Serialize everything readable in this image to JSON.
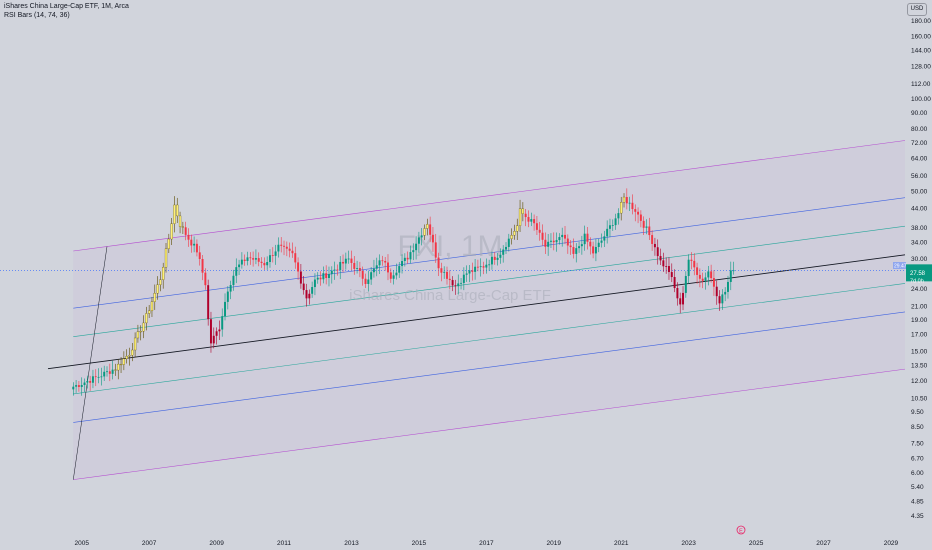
{
  "header": {
    "title": "iShares China Large-Cap ETF, 1M, Arca",
    "indicator": "RSI Bars (14, 74, 36)"
  },
  "currency_button": "USD",
  "watermark": {
    "ticker": "FXI, 1M",
    "name": "iShares China Large-Cap ETF"
  },
  "price_labels": {
    "current": "27.58",
    "countdown": "7d 0h",
    "ghost": "29.47"
  },
  "events_marker": "E",
  "colors": {
    "background": "#d1d4dc",
    "up": "#089981",
    "down": "#f23645",
    "overbought": "#fff176",
    "oversold": "#b0002b",
    "outer_channel": "#b44bd0",
    "quarter_line": "#3f63e0",
    "eighth_line": "#26a69a",
    "median_line": "#131722",
    "price_line": "#2962ff"
  },
  "chart_data": {
    "type": "candlestick",
    "title": "iShares China Large-Cap ETF, 1M, Arca",
    "interval": "1M",
    "y_scale": "log",
    "y_range": [
      4.0,
      200
    ],
    "y_ticks": [
      4.35,
      4.85,
      5.4,
      6.0,
      6.7,
      7.5,
      8.5,
      9.5,
      10.5,
      12.0,
      13.5,
      15.0,
      17.0,
      19.0,
      21.0,
      24.0,
      27.58,
      30.0,
      34.0,
      38.0,
      44.0,
      50.0,
      56.0,
      64.0,
      72.0,
      80.0,
      90.0,
      100.0,
      112.0,
      128.0,
      144.0,
      160.0,
      180.0
    ],
    "y_tick_labels": [
      "4.35",
      "4.85",
      "5.40",
      "6.00",
      "6.70",
      "7.50",
      "8.50",
      "9.50",
      "10.50",
      "12.00",
      "13.50",
      "15.00",
      "17.00",
      "19.00",
      "21.00",
      "24.00",
      "27.58",
      "30.00",
      "34.00",
      "38.00",
      "44.00",
      "50.00",
      "56.00",
      "64.00",
      "72.00",
      "80.00",
      "90.00",
      "100.00",
      "112.00",
      "128.00",
      "144.00",
      "160.00",
      "180.00"
    ],
    "x_range": [
      "2004-01",
      "2029-06"
    ],
    "x_ticks": [
      "2005",
      "2007",
      "2009",
      "2011",
      "2013",
      "2015",
      "2017",
      "2019",
      "2021",
      "2023",
      "2025",
      "2027",
      "2029"
    ],
    "last_close": 27.58,
    "close_anchors": [
      [
        "2004-10",
        11.5
      ],
      [
        "2005-06",
        12.3
      ],
      [
        "2006-01",
        13.2
      ],
      [
        "2006-06",
        14.8
      ],
      [
        "2006-12",
        19.5
      ],
      [
        "2007-05",
        26.0
      ],
      [
        "2007-08",
        35.0
      ],
      [
        "2007-10",
        45.0
      ],
      [
        "2007-12",
        39.0
      ],
      [
        "2008-03",
        35.0
      ],
      [
        "2008-06",
        32.0
      ],
      [
        "2008-09",
        25.0
      ],
      [
        "2008-10",
        19.0
      ],
      [
        "2008-11",
        16.0
      ],
      [
        "2009-02",
        18.0
      ],
      [
        "2009-05",
        24.0
      ],
      [
        "2009-08",
        28.0
      ],
      [
        "2009-12",
        30.5
      ],
      [
        "2010-06",
        29.0
      ],
      [
        "2010-11",
        33.0
      ],
      [
        "2011-04",
        31.0
      ],
      [
        "2011-09",
        22.5
      ],
      [
        "2011-12",
        25.5
      ],
      [
        "2012-05",
        27.0
      ],
      [
        "2012-12",
        30.0
      ],
      [
        "2013-06",
        25.5
      ],
      [
        "2013-12",
        30.0
      ],
      [
        "2014-03",
        26.5
      ],
      [
        "2014-09",
        30.5
      ],
      [
        "2015-04",
        39.5
      ],
      [
        "2015-08",
        28.5
      ],
      [
        "2016-02",
        24.5
      ],
      [
        "2016-06",
        27.0
      ],
      [
        "2016-12",
        28.5
      ],
      [
        "2017-06",
        31.5
      ],
      [
        "2017-12",
        38.5
      ],
      [
        "2018-01",
        43.0
      ],
      [
        "2018-06",
        39.0
      ],
      [
        "2018-10",
        33.0
      ],
      [
        "2019-04",
        35.5
      ],
      [
        "2019-08",
        31.0
      ],
      [
        "2019-12",
        35.5
      ],
      [
        "2020-03",
        31.5
      ],
      [
        "2020-06",
        34.5
      ],
      [
        "2020-12",
        42.5
      ],
      [
        "2021-02",
        47.5
      ],
      [
        "2021-06",
        43.5
      ],
      [
        "2021-10",
        37.5
      ],
      [
        "2022-01",
        33.0
      ],
      [
        "2022-03",
        29.5
      ],
      [
        "2022-06",
        27.5
      ],
      [
        "2022-10",
        21.0
      ],
      [
        "2023-01",
        30.0
      ],
      [
        "2023-06",
        25.5
      ],
      [
        "2023-08",
        27.5
      ],
      [
        "2023-12",
        22.0
      ],
      [
        "2024-02",
        23.5
      ],
      [
        "2024-05",
        29.0
      ]
    ],
    "rsi_bars": {
      "length": 14,
      "overbought": 74,
      "oversold": 36
    },
    "channel": {
      "type": "fibonacci-channel (sloped, log)",
      "anchor_start": [
        "2004-10",
        13.5
      ],
      "anchor_end": [
        "2029-06",
        31.0
      ],
      "levels": [
        {
          "name": "lower-outer",
          "offset": -0.5
        },
        {
          "name": "quarter-low",
          "offset": -0.25
        },
        {
          "name": "eighth-low",
          "offset": -0.125
        },
        {
          "name": "median",
          "offset": 0
        },
        {
          "name": "eighth-high",
          "offset": 0.125
        },
        {
          "name": "quarter-high",
          "offset": 0.25
        },
        {
          "name": "upper-outer",
          "offset": 0.5
        }
      ]
    }
  }
}
